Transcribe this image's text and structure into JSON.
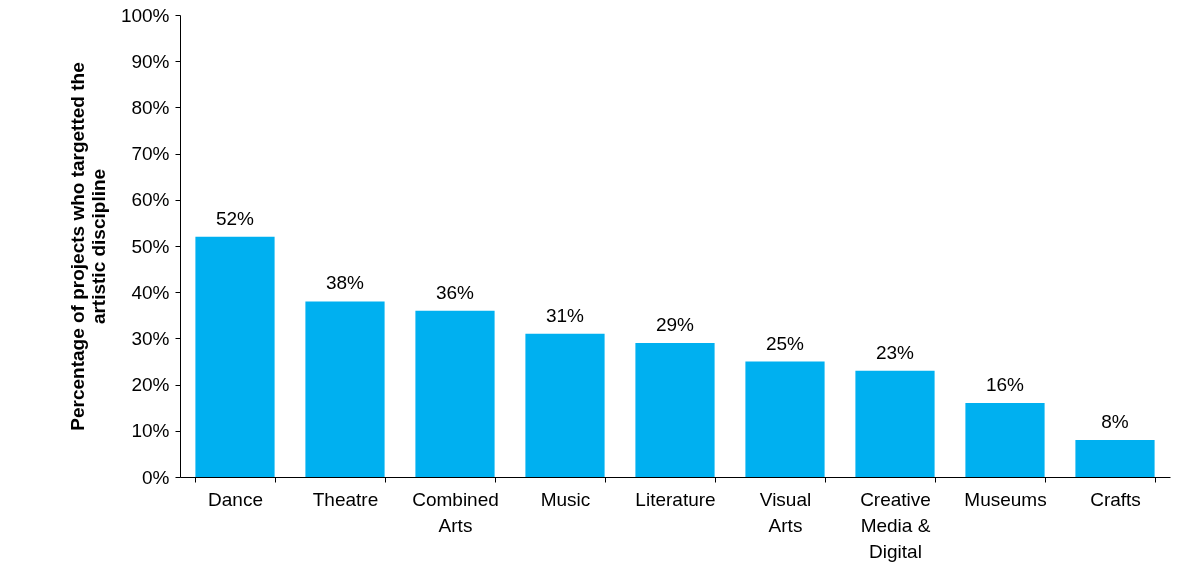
{
  "chart_data": {
    "type": "bar",
    "ylabel": "Percentage of projects who targetted the artistic discipline",
    "categories": [
      "Dance",
      "Theatre",
      "Combined Arts",
      "Music",
      "Literature",
      "Visual Arts",
      "Creative Media & Digital",
      "Museums",
      "Crafts"
    ],
    "values": [
      52,
      38,
      36,
      31,
      29,
      25,
      23,
      16,
      8
    ],
    "value_labels": [
      "52%",
      "38%",
      "36%",
      "31%",
      "29%",
      "25%",
      "23%",
      "16%",
      "8%"
    ],
    "color": "#00b0f0",
    "ylim": [
      0,
      100
    ],
    "yticks": [
      {
        "value": 0,
        "label": "0%"
      },
      {
        "value": 10,
        "label": "10%"
      },
      {
        "value": 20,
        "label": "20%"
      },
      {
        "value": 30,
        "label": "30%"
      },
      {
        "value": 40,
        "label": "40%"
      },
      {
        "value": 50,
        "label": "50%"
      },
      {
        "value": 60,
        "label": "60%"
      },
      {
        "value": 70,
        "label": "70%"
      },
      {
        "value": 80,
        "label": "80%"
      },
      {
        "value": 90,
        "label": "90%"
      },
      {
        "value": 100,
        "label": "100%"
      }
    ],
    "grid": false
  }
}
